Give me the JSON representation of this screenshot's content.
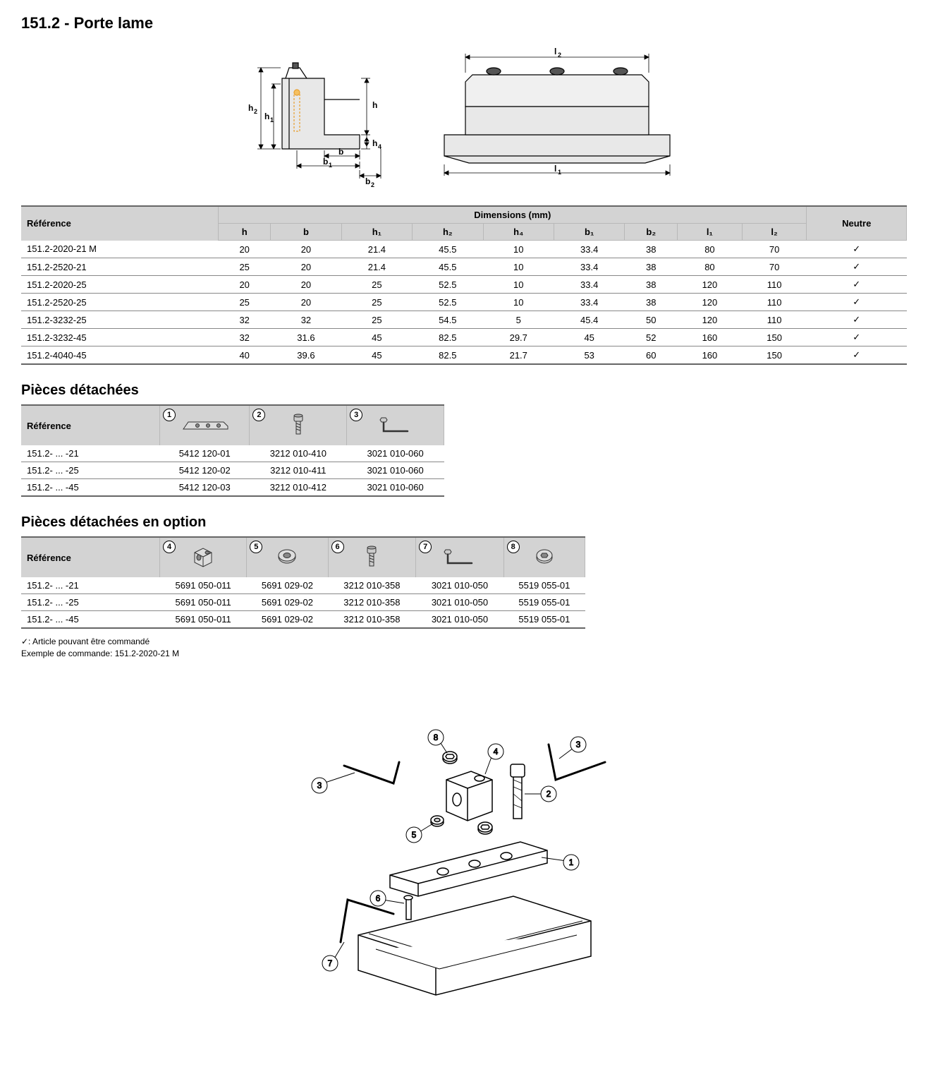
{
  "title": "151.2 - Porte lame",
  "main_table": {
    "ref_header": "Référence",
    "dim_header": "Dimensions (mm)",
    "neutre_header": "Neutre",
    "columns": [
      "h",
      "b",
      "h₁",
      "h₂",
      "h₄",
      "b₁",
      "b₂",
      "l₁",
      "l₂"
    ],
    "rows": [
      {
        "ref": "151.2-2020-21 M",
        "vals": [
          "20",
          "20",
          "21.4",
          "45.5",
          "10",
          "33.4",
          "38",
          "80",
          "70"
        ],
        "neutre": "✓"
      },
      {
        "ref": "151.2-2520-21",
        "vals": [
          "25",
          "20",
          "21.4",
          "45.5",
          "10",
          "33.4",
          "38",
          "80",
          "70"
        ],
        "neutre": "✓"
      },
      {
        "ref": "151.2-2020-25",
        "vals": [
          "20",
          "20",
          "25",
          "52.5",
          "10",
          "33.4",
          "38",
          "120",
          "110"
        ],
        "neutre": "✓"
      },
      {
        "ref": "151.2-2520-25",
        "vals": [
          "25",
          "20",
          "25",
          "52.5",
          "10",
          "33.4",
          "38",
          "120",
          "110"
        ],
        "neutre": "✓"
      },
      {
        "ref": "151.2-3232-25",
        "vals": [
          "32",
          "32",
          "25",
          "54.5",
          "5",
          "45.4",
          "50",
          "120",
          "110"
        ],
        "neutre": "✓"
      },
      {
        "ref": "151.2-3232-45",
        "vals": [
          "32",
          "31.6",
          "45",
          "82.5",
          "29.7",
          "45",
          "52",
          "160",
          "150"
        ],
        "neutre": "✓"
      },
      {
        "ref": "151.2-4040-45",
        "vals": [
          "40",
          "39.6",
          "45",
          "82.5",
          "21.7",
          "53",
          "60",
          "160",
          "150"
        ],
        "neutre": "✓"
      }
    ]
  },
  "parts_heading": "Pièces détachées",
  "parts_table": {
    "ref_header": "Référence",
    "icon_labels": [
      "1",
      "2",
      "3"
    ],
    "rows": [
      {
        "ref": "151.2- ... -21",
        "vals": [
          "5412 120-01",
          "3212 010-410",
          "3021 010-060"
        ]
      },
      {
        "ref": "151.2- ... -25",
        "vals": [
          "5412 120-02",
          "3212 010-411",
          "3021 010-060"
        ]
      },
      {
        "ref": "151.2- ... -45",
        "vals": [
          "5412 120-03",
          "3212 010-412",
          "3021 010-060"
        ]
      }
    ]
  },
  "options_heading": "Pièces détachées en option",
  "options_table": {
    "ref_header": "Référence",
    "icon_labels": [
      "4",
      "5",
      "6",
      "7",
      "8"
    ],
    "rows": [
      {
        "ref": "151.2- ... -21",
        "vals": [
          "5691 050-011",
          "5691 029-02",
          "3212 010-358",
          "3021 010-050",
          "5519 055-01"
        ]
      },
      {
        "ref": "151.2- ... -25",
        "vals": [
          "5691 050-011",
          "5691 029-02",
          "3212 010-358",
          "3021 010-050",
          "5519 055-01"
        ]
      },
      {
        "ref": "151.2- ... -45",
        "vals": [
          "5691 050-011",
          "5691 029-02",
          "3212 010-358",
          "3021 010-050",
          "5519 055-01"
        ]
      }
    ]
  },
  "note_line1": "✓: Article pouvant être commandé",
  "note_line2": "Exemple de commande: 151.2-2020-21 M",
  "diagram_labels": {
    "h": "h",
    "h1": "h₁",
    "h2": "h₂",
    "h4": "h₄",
    "b": "b",
    "b1": "b₁",
    "b2": "b₂",
    "l1": "l₁",
    "l2": "l₂"
  }
}
